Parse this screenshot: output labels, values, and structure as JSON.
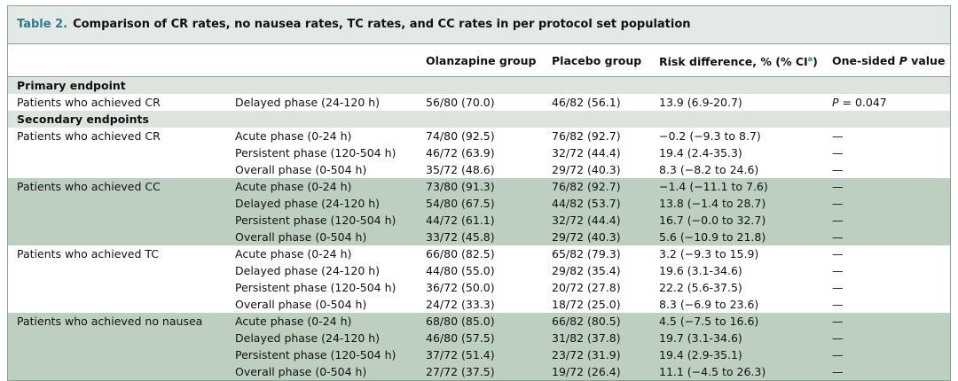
{
  "title": {
    "label": "Table 2.",
    "text": "Comparison of CR rates, no nausea rates, TC rates, and CC rates in per protocol set population"
  },
  "header": [
    "Olanzapine group",
    "Placebo group",
    {
      "text": "Risk difference, % (% CI",
      "sup": "a",
      "after": ")"
    },
    {
      "text": "One-sided ",
      "italic": "P",
      "after": " value"
    }
  ],
  "sections": [
    {
      "title": "Primary endpoint",
      "groups": [
        {
          "label": "Patients who achieved CR",
          "rows": [
            [
              "Delayed phase (24-120 h)",
              "56/80 (70.0)",
              "46/82 (56.1)",
              "13.9 (6.9-20.7)",
              {
                "italic": "P",
                "text": " = 0.047"
              }
            ]
          ]
        }
      ]
    },
    {
      "title": "Secondary endpoints",
      "groups": [
        {
          "label": "Patients who achieved CR",
          "rows": [
            [
              "Acute phase (0-24 h)",
              "74/80 (92.5)",
              "76/82 (92.7)",
              "−0.2 (−9.3 to 8.7)",
              "—"
            ],
            [
              "Persistent phase (120-504 h)",
              "46/72 (63.9)",
              "32/72 (44.4)",
              "19.4 (2.4-35.3)",
              "—"
            ],
            [
              "Overall phase (0-504 h)",
              "35/72 (48.6)",
              "29/72 (40.3)",
              "8.3 (−8.2 to 24.6)",
              "—"
            ]
          ]
        },
        {
          "label": "Patients who achieved CC",
          "rows": [
            [
              "Acute phase (0-24 h)",
              "73/80 (91.3)",
              "76/82 (92.7)",
              "−1.4 (−11.1 to 7.6)",
              "—"
            ],
            [
              "Delayed phase (24-120 h)",
              "54/80 (67.5)",
              "44/82 (53.7)",
              "13.8 (−1.4 to 28.7)",
              "—"
            ],
            [
              "Persistent phase (120-504 h)",
              "44/72 (61.1)",
              "32/72 (44.4)",
              "16.7 (−0.0 to 32.7)",
              "—"
            ],
            [
              "Overall phase (0-504 h)",
              "33/72 (45.8)",
              "29/72 (40.3)",
              "5.6 (−10.9 to 21.8)",
              "—"
            ]
          ]
        },
        {
          "label": "Patients who achieved TC",
          "rows": [
            [
              "Acute phase (0-24 h)",
              "66/80 (82.5)",
              "65/82 (79.3)",
              "3.2 (−9.3 to 15.9)",
              "—"
            ],
            [
              "Delayed phase (24-120 h)",
              "44/80 (55.0)",
              "29/82 (35.4)",
              "19.6 (3.1-34.6)",
              "—"
            ],
            [
              "Persistent phase (120-504 h)",
              "36/72 (50.0)",
              "20/72 (27.8)",
              "22.2 (5.6-37.5)",
              "—"
            ],
            [
              "Overall phase (0-504 h)",
              "24/72 (33.3)",
              "18/72 (25.0)",
              "8.3 (−6.9 to 23.6)",
              "—"
            ]
          ]
        },
        {
          "label": "Patients who achieved no nausea",
          "rows": [
            [
              "Acute phase (0-24 h)",
              "68/80 (85.0)",
              "66/82 (80.5)",
              "4.5 (−7.5 to 16.6)",
              "—"
            ],
            [
              "Delayed phase (24-120 h)",
              "46/80 (57.5)",
              "31/82 (37.8)",
              "19.7 (3.1-34.6)",
              "—"
            ],
            [
              "Persistent phase (120-504 h)",
              "37/72 (51.4)",
              "23/72 (31.9)",
              "19.4 (2.9-35.1)",
              "—"
            ],
            [
              "Overall phase (0-504 h)",
              "27/72 (37.5)",
              "19/72 (26.4)",
              "11.1 (−4.5 to 26.3)",
              "—"
            ]
          ]
        }
      ]
    }
  ]
}
